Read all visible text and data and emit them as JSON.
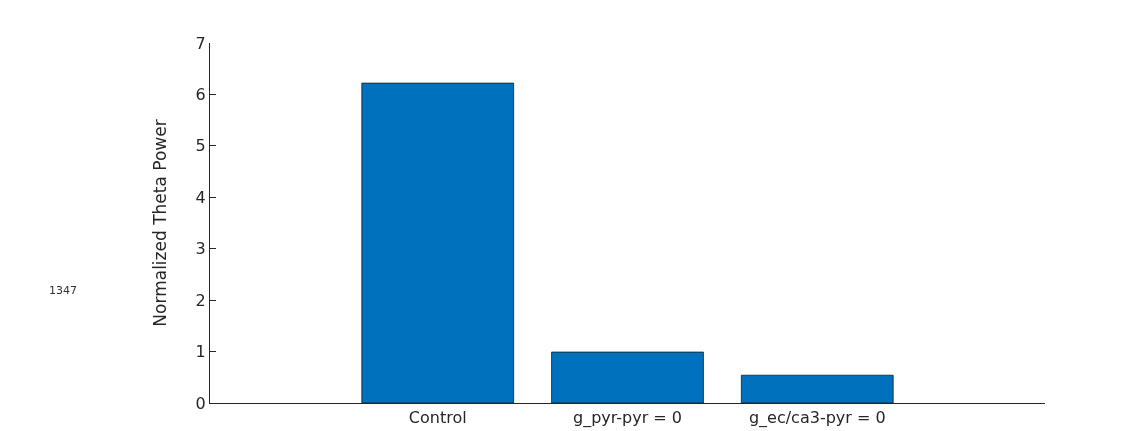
{
  "chart_data": {
    "type": "bar",
    "ylabel": "Normalized Theta Power",
    "categories": [
      "Control",
      "g_pyr-pyr = 0",
      "g_ec/ca3-pyr = 0"
    ],
    "values": [
      6.22,
      0.99,
      0.54
    ],
    "color": "#0072bd",
    "ylim": [
      0,
      7
    ],
    "yticks": [
      0,
      1,
      2,
      3,
      4,
      5,
      6,
      7
    ],
    "grid": false,
    "annotations": [
      "1347"
    ]
  }
}
